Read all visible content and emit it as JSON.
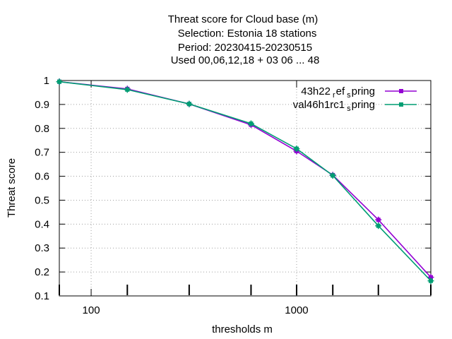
{
  "chart_data": {
    "type": "line",
    "title_lines": [
      "Threat score  for Cloud base (m)",
      "Selection: Estonia     18 stations",
      "Period: 20230415-20230515",
      "Used  00,06,12,18  + 03 06 ... 48"
    ],
    "xlabel": "thresholds m",
    "ylabel": "Threat score",
    "x_scale": "log",
    "xlim": [
      70,
      4500
    ],
    "ylim": [
      0.1,
      1.0
    ],
    "x_ticks": [
      100,
      1000
    ],
    "x_tick_labels": [
      "100",
      "1000"
    ],
    "y_ticks": [
      0.1,
      0.2,
      0.3,
      0.4,
      0.5,
      0.6,
      0.7,
      0.8,
      0.9,
      1.0
    ],
    "y_tick_labels": [
      "0.1",
      "0.2",
      "0.3",
      "0.4",
      "0.5",
      "0.6",
      "0.7",
      "0.8",
      "0.9",
      "1"
    ],
    "grid": true,
    "legend_position": "top-right",
    "x": [
      70,
      150,
      300,
      600,
      1000,
      1500,
      2500,
      4500
    ],
    "series": [
      {
        "name_main": "43h22",
        "name_mid": "ef",
        "name_end": "pring",
        "name_sub1": "r",
        "name_sub2": "s",
        "color": "#9400d3",
        "values": [
          0.995,
          0.965,
          0.902,
          0.815,
          0.705,
          0.605,
          0.418,
          0.178
        ]
      },
      {
        "name_main": "val46h1rc1",
        "name_mid": "",
        "name_end": "pring",
        "name_sub1": "",
        "name_sub2": "s",
        "color": "#009e73",
        "values": [
          0.995,
          0.962,
          0.902,
          0.82,
          0.715,
          0.603,
          0.393,
          0.163
        ]
      }
    ]
  }
}
